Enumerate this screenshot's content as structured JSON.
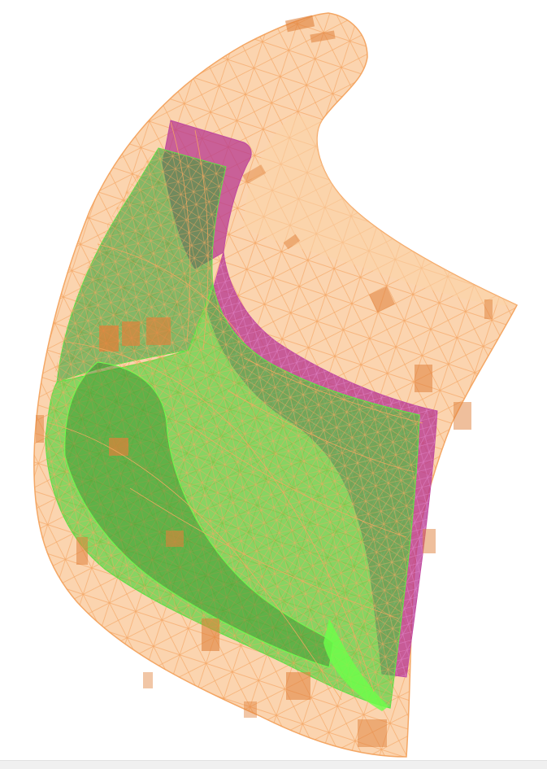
{
  "scene": {
    "layers": [
      {
        "id": "outer-shell",
        "mesh": "triangulated",
        "opacity": 0.55
      },
      {
        "id": "magenta-shell",
        "mesh": "triangulated",
        "opacity": 0.75
      },
      {
        "id": "green-core",
        "mesh": "triangulated",
        "opacity": 0.7
      }
    ],
    "colors": {
      "outer_fill": "#f7b27a",
      "outer_wire": "#f6a35c",
      "magenta_fill": "#b5338f",
      "magenta_wire": "#c04aa0",
      "green_fill": "#3fd434",
      "green_dark": "#2e8a2a",
      "green_wire": "#6cff4a",
      "patch_fill": "#e0803a",
      "background": "#ffffff",
      "status_strip": "#f0f0f0"
    }
  }
}
